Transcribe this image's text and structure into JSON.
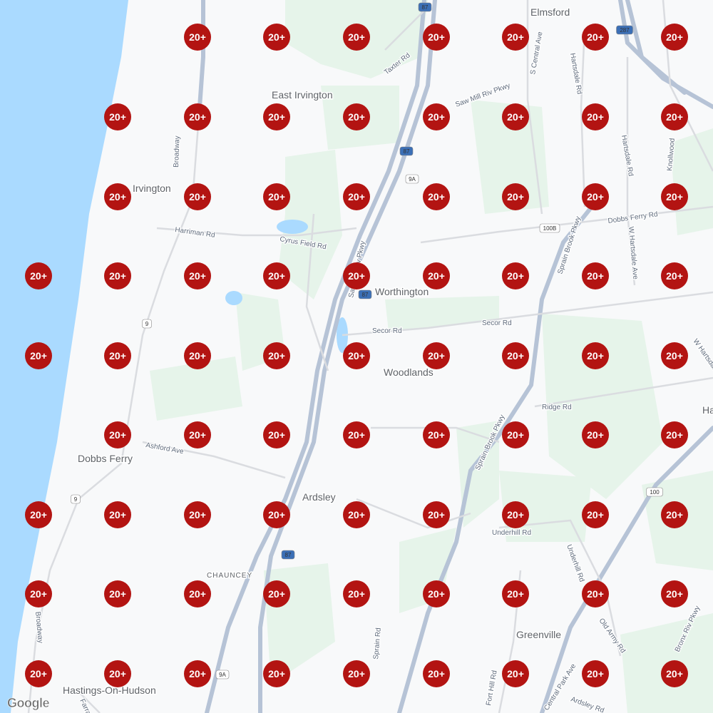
{
  "map": {
    "colors": {
      "water": "#aadaff",
      "land": "#f8f9fa",
      "park": "#e6f4ea",
      "highway": "#b6c3d6",
      "marker": "#b31412"
    },
    "places": [
      "Elmsford",
      "East Irvington",
      "Irvington",
      "Worthington",
      "Woodlands",
      "Dobbs Ferry",
      "Ardsley",
      "CHAUNCEY",
      "Greenville",
      "Hastings-On-Hudson",
      "Ha"
    ],
    "roads": [
      "Taxter Rd",
      "S Central Ave",
      "Hartsdale Rd",
      "Saw Mill Riv Pkwy",
      "Sprain Brook Pkwy",
      "Harriman Rd",
      "Cyrus Field Rd",
      "Dobbs Ferry Rd",
      "W Hartsdale Ave",
      "Secor Rd",
      "Ridge Rd",
      "Ashford Ave",
      "Sprain Rd",
      "Underhill Rd",
      "Old Army Rd",
      "Central Park Ave",
      "Bronx Riv Pkwy",
      "Broadway",
      "Farragut",
      "Ardsley Rd",
      "Fort Hill Rd",
      "Knollwood",
      "Hartsdale Rd",
      "Secor Rd",
      "Saw Mill Riv Pkwy",
      "Sprain Brook Pkwy",
      "Broadway",
      "Underhill Rd",
      "W Hartsdale Ave"
    ],
    "shields": [
      "87",
      "287",
      "9A",
      "100B",
      "9",
      "100",
      "87",
      "87",
      "9",
      "9A",
      "87"
    ],
    "logo": "Google"
  },
  "clusters": {
    "label": "20+",
    "rows": [
      [
        0,
        0,
        1,
        1,
        1,
        1,
        1,
        1,
        1
      ],
      [
        0,
        1,
        1,
        1,
        1,
        1,
        1,
        1,
        1
      ],
      [
        0,
        1,
        1,
        1,
        1,
        1,
        1,
        1,
        1
      ],
      [
        1,
        1,
        1,
        1,
        1,
        1,
        1,
        1,
        1
      ],
      [
        1,
        1,
        1,
        1,
        1,
        1,
        1,
        1,
        1
      ],
      [
        0,
        1,
        1,
        1,
        1,
        1,
        1,
        1,
        1
      ],
      [
        1,
        1,
        1,
        1,
        1,
        1,
        1,
        1,
        1
      ],
      [
        1,
        1,
        1,
        1,
        1,
        1,
        1,
        1,
        1
      ],
      [
        1,
        1,
        1,
        1,
        1,
        1,
        1,
        1,
        1
      ]
    ]
  }
}
